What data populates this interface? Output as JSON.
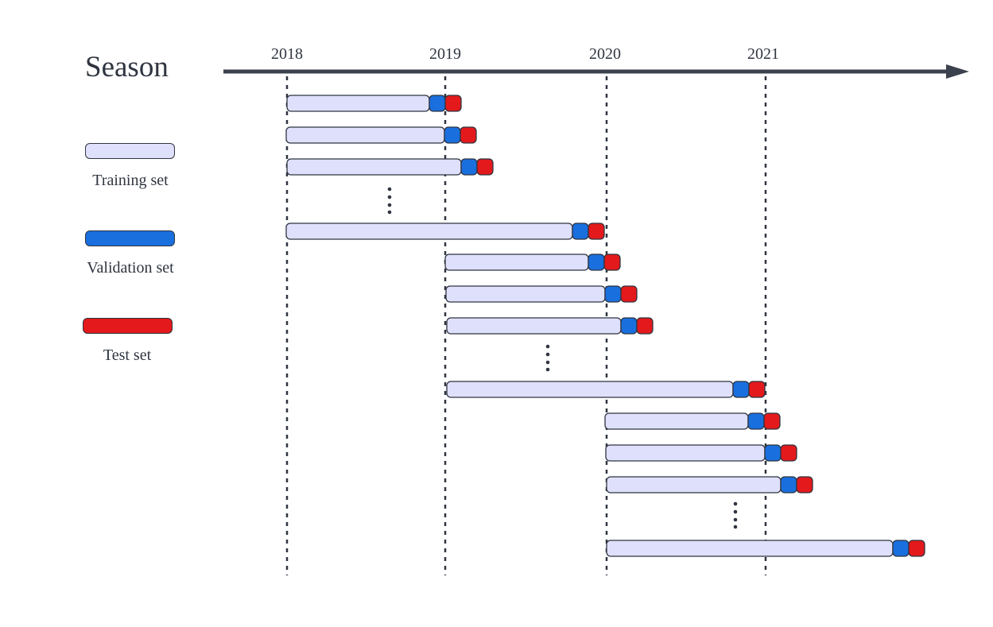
{
  "title": "Season",
  "years": [
    "2018",
    "2019",
    "2020",
    "2021"
  ],
  "colors": {
    "training": "#dfe0fb",
    "validation": "#1a6fde",
    "test": "#e3191c",
    "axis": "#3b414d",
    "outline": "#2f3540"
  },
  "legend": [
    {
      "key": "training",
      "label": "Training set"
    },
    {
      "key": "validation",
      "label": "Validation set"
    },
    {
      "key": "test",
      "label": "Test set"
    }
  ],
  "groups": [
    {
      "train_start": "2018",
      "rows": [
        "first-split",
        "second-split",
        "third-split",
        "last-split"
      ],
      "ellipsis_after_row": 3
    },
    {
      "train_start": "2019",
      "rows": [
        "first-split",
        "second-split",
        "third-split",
        "last-split"
      ],
      "ellipsis_after_row": 3
    },
    {
      "train_start": "2020",
      "rows": [
        "first-split",
        "second-split",
        "third-split",
        "last-split"
      ],
      "ellipsis_after_row": 3
    }
  ]
}
